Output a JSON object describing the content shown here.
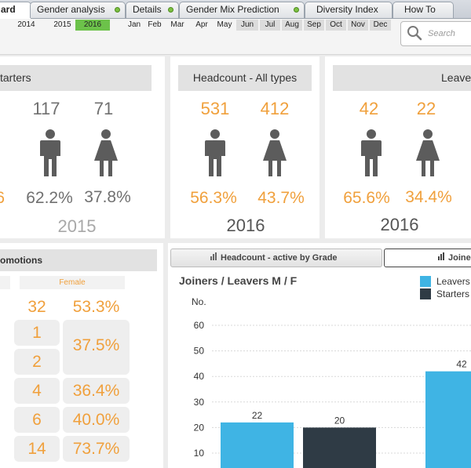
{
  "tabs": [
    {
      "label": "ard",
      "active": true
    },
    {
      "label": "Gender analysis"
    },
    {
      "label": "Details"
    },
    {
      "label": "Gender Mix Prediction"
    },
    {
      "label": "Diversity Index"
    },
    {
      "label": "How To"
    }
  ],
  "filters": {
    "years": [
      {
        "label": "2014",
        "selected": false
      },
      {
        "label": "2015",
        "selected": false
      },
      {
        "label": "2016",
        "selected": true
      }
    ],
    "months": [
      "Jan",
      "Feb",
      "Mar",
      "Apr",
      "May",
      "Jun",
      "Jul",
      "Aug",
      "Sep",
      "Oct",
      "Nov",
      "Dec"
    ]
  },
  "search": {
    "placeholder": "Search"
  },
  "kpi_panels": {
    "starters": {
      "title": "tarters",
      "male_count": "117",
      "female_count": "71",
      "male_pct": "62.2%",
      "female_pct": "37.8%",
      "left_pct_partial": "6",
      "year": "2015"
    },
    "headcount": {
      "title": "Headcount - All types",
      "male_count": "531",
      "female_count": "412",
      "male_pct": "56.3%",
      "female_pct": "43.7%",
      "year": "2016"
    },
    "leavers": {
      "title": "Leave",
      "male_count": "42",
      "female_count": "22",
      "male_pct": "65.6%",
      "female_pct": "34.4%",
      "year": "2016"
    }
  },
  "promotions": {
    "title": "omotions",
    "female_header": "Female",
    "rows": [
      {
        "count": "32",
        "pct": "53.3%"
      },
      {
        "count": "1",
        "pct": "37.5%"
      },
      {
        "count": "2",
        "pct": ""
      },
      {
        "count": "4",
        "pct": "36.4%"
      },
      {
        "count": "6",
        "pct": "40.0%"
      },
      {
        "count": "14",
        "pct": "73.7%"
      }
    ]
  },
  "chart_tabs": {
    "headcount": "Headcount - active by Grade",
    "joiners": "Joine"
  },
  "chart_data": {
    "type": "bar",
    "title": "Joiners / Leavers M / F",
    "ylabel": "No.",
    "yticks": [
      10,
      20,
      30,
      40,
      50,
      60
    ],
    "ylim": [
      0,
      65
    ],
    "series": [
      {
        "name": "Leavers",
        "color": "#3fb4e4"
      },
      {
        "name": "Starters",
        "color": "#2f3b45"
      }
    ],
    "bars": [
      {
        "series": "Leavers",
        "value": 22,
        "label": "22"
      },
      {
        "series": "Starters",
        "value": 20,
        "label": "20"
      },
      {
        "series": "Leavers",
        "value": 42,
        "label": "42"
      }
    ]
  },
  "colors": {
    "accent_orange": "#f0a03c",
    "male_grey": "#707070",
    "filter_selected": "#6cc24a"
  }
}
